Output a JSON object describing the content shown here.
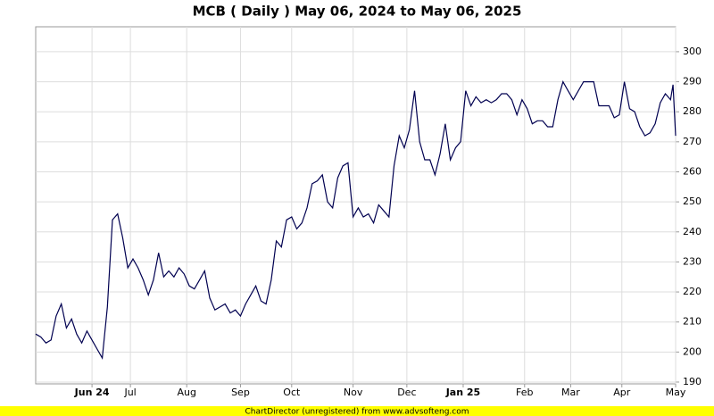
{
  "chart_data": {
    "type": "line",
    "title": "MCB ( Daily ) May 06, 2024 to May 06, 2025",
    "footer": "ChartDirector (unregistered) from www.advsofteng.com",
    "x": [
      0,
      2,
      4,
      6,
      8,
      10,
      12,
      14,
      16,
      18,
      20,
      22,
      24,
      26,
      28,
      30,
      32,
      34,
      36,
      38,
      40,
      42,
      44,
      46,
      48,
      50,
      52,
      54,
      56,
      58,
      60,
      62,
      64,
      66,
      68,
      70,
      72,
      74,
      76,
      78,
      80,
      82,
      84,
      86,
      88,
      90,
      92,
      94,
      96,
      98,
      100,
      102,
      104,
      106,
      108,
      110,
      112,
      114,
      116,
      118,
      120,
      122,
      124,
      126,
      128,
      130,
      132,
      134,
      136,
      138,
      140,
      142,
      144,
      146,
      148,
      150,
      152,
      154,
      156,
      158,
      160,
      162,
      164,
      166,
      168,
      170,
      172,
      174,
      176,
      178,
      180,
      182,
      184,
      186,
      188,
      190,
      192,
      194,
      196,
      198,
      200,
      202,
      204,
      206,
      208,
      210,
      212,
      214,
      216,
      218,
      220,
      222,
      224,
      226,
      228,
      230,
      232,
      234,
      236,
      238,
      240,
      242,
      244,
      246,
      248,
      249,
      250
    ],
    "series": [
      {
        "name": "MCB",
        "color": "#000050",
        "values": [
          206,
          205,
          203,
          204,
          212,
          216,
          208,
          211,
          206,
          203,
          207,
          204,
          201,
          198,
          215,
          244,
          246,
          238,
          228,
          231,
          228,
          224,
          219,
          224,
          233,
          225,
          227,
          225,
          228,
          226,
          222,
          221,
          224,
          227,
          218,
          214,
          215,
          216,
          213,
          214,
          212,
          216,
          219,
          222,
          217,
          216,
          224,
          237,
          235,
          244,
          245,
          241,
          243,
          248,
          256,
          257,
          259,
          250,
          248,
          258,
          262,
          263,
          245,
          248,
          245,
          246,
          243,
          249,
          247,
          245,
          262,
          272,
          268,
          274,
          287,
          270,
          264,
          264,
          259,
          266,
          276,
          264,
          268,
          270,
          287,
          282,
          285,
          283,
          284,
          283,
          284,
          286,
          286,
          284,
          279,
          284,
          281,
          276,
          277,
          277,
          275,
          275,
          284,
          290,
          287,
          284,
          287,
          290,
          290,
          290,
          282,
          282,
          282,
          278,
          279,
          290,
          281,
          280,
          275,
          272,
          273,
          276,
          283,
          286,
          284,
          289,
          272
        ]
      }
    ],
    "xlim": [
      0,
      250
    ],
    "xticks": [
      {
        "value": 22,
        "label": "Jun 24"
      },
      {
        "value": 37,
        "label": "Jul"
      },
      {
        "value": 59,
        "label": "Aug"
      },
      {
        "value": 80,
        "label": "Sep"
      },
      {
        "value": 100,
        "label": "Oct"
      },
      {
        "value": 124,
        "label": "Nov"
      },
      {
        "value": 145,
        "label": "Dec"
      },
      {
        "value": 167,
        "label": "Jan 25"
      },
      {
        "value": 191,
        "label": "Feb"
      },
      {
        "value": 209,
        "label": "Mar"
      },
      {
        "value": 229,
        "label": "Apr"
      },
      {
        "value": 250,
        "label": "May"
      }
    ],
    "ylim": [
      189.4,
      308.3
    ],
    "yticks": [
      190,
      200,
      210,
      220,
      230,
      240,
      250,
      260,
      270,
      280,
      290,
      300
    ],
    "grid": true
  }
}
